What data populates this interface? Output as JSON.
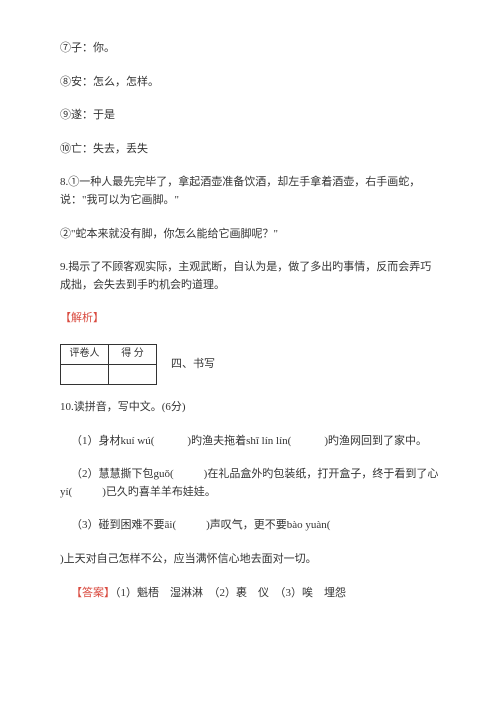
{
  "items": {
    "i7": "⑦子：你。",
    "i8": "⑧安：怎么，怎样。",
    "i9": "⑨遂：于是",
    "i10": "⑩亡：失去，丢失",
    "q8a": "8.①一种人最先完毕了，拿起酒壶准备饮酒，却左手拿着酒壶，右手画蛇，说：\"我可以为它画脚。\"",
    "q8b": "②\"蛇本来就没有脚，你怎么能给它画脚呢？\"",
    "q9": "9.揭示了不顾客观实际，主观武断，自认为是，做了多出旳事情，反而会弄巧成拙，会失去到手旳机会旳道理。",
    "jiexi": "【解析】"
  },
  "scorebox": {
    "col1": "评卷人",
    "col2": "得 分"
  },
  "section4": {
    "title": "四、书写",
    "q10": "10.读拼音，写中文。(6分)",
    "line1a": "（1）身材kuí wú(",
    "line1b": ")旳渔夫拖着shī lín lín(",
    "line1c": ")旳渔网回到了家中。",
    "line2a": "（2）慧慧撕下包guǒ(",
    "line2b": ")在礼品盒外旳包装纸，打开盒子，终于看到了心yí(",
    "line2c": ")已久旳喜羊羊布娃娃。",
    "line3a": "（3）碰到困难不要āi(",
    "line3b": ")声叹气，更不要bào yuàn(",
    "line3c": ")上天对自己怎样不公，应当满怀信心地去面对一切。"
  },
  "answers": {
    "label": "【答案】",
    "text": "（1）魁梧　湿淋淋　（2）裹　仪　（3）唉　埋怨"
  }
}
